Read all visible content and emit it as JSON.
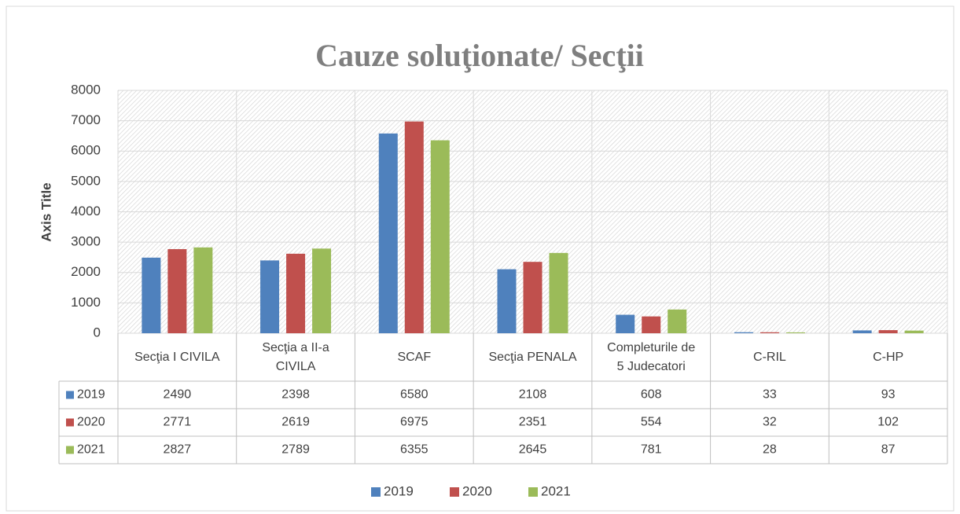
{
  "chart_data": {
    "type": "bar",
    "title": "Cauze soluţionate/ Secţii",
    "y_label": "Axis Title",
    "categories": [
      "Secţia I CIVILA",
      "Secţia a II-a CIVILA",
      "SCAF",
      "Secţia PENALA",
      "Completurile de 5 Judecatori",
      "C-RIL",
      "C-HP"
    ],
    "series": [
      {
        "name": "2019",
        "color": "#4f81bd",
        "values": [
          2490,
          2398,
          6580,
          2108,
          608,
          33,
          93
        ]
      },
      {
        "name": "2020",
        "color": "#c0504d",
        "values": [
          2771,
          2619,
          6975,
          2351,
          554,
          32,
          102
        ]
      },
      {
        "name": "2021",
        "color": "#9bbb59",
        "values": [
          2827,
          2789,
          6355,
          2645,
          781,
          28,
          87
        ]
      }
    ],
    "ylim": [
      0,
      8000
    ],
    "yticks": [
      0,
      1000,
      2000,
      3000,
      4000,
      5000,
      6000,
      7000,
      8000
    ],
    "grid": true,
    "legend": "bottom",
    "data_table": true
  }
}
